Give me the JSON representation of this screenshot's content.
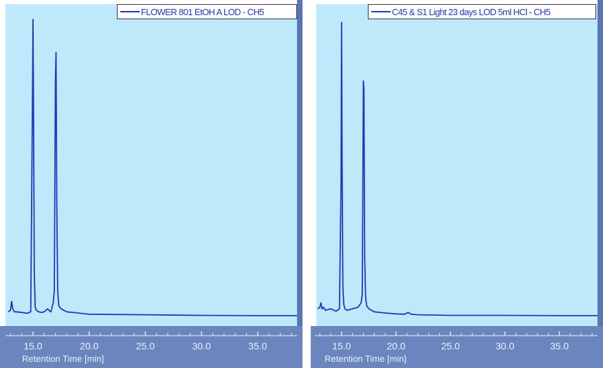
{
  "chart_data": [
    {
      "type": "line",
      "legend": "FLOWER 801 EtOH A LOD - CH5",
      "xlabel": "Retention Time [min]",
      "x_ticks": [
        "15.0",
        "20.0",
        "25.0",
        "30.0",
        "35.0"
      ],
      "xlim": [
        12.8,
        38.5
      ],
      "ylim": [
        0,
        1.0
      ],
      "series": [
        {
          "x": [
            12.8,
            13.0,
            13.1,
            13.2,
            13.35,
            13.5,
            14.0,
            14.5,
            14.8,
            14.95,
            15.0,
            15.05,
            15.12,
            15.2,
            15.3,
            15.5,
            15.8,
            16.0,
            16.3,
            16.5,
            16.6,
            16.8,
            16.9,
            17.0,
            17.05,
            17.12,
            17.2,
            17.3,
            17.5,
            18.0,
            19.0,
            20.0,
            25.0,
            30.0,
            35.0,
            38.5
          ],
          "y": [
            0.02,
            0.025,
            0.055,
            0.03,
            0.02,
            0.02,
            0.018,
            0.015,
            0.02,
            0.69,
            0.995,
            0.68,
            0.15,
            0.035,
            0.025,
            0.02,
            0.018,
            0.02,
            0.03,
            0.022,
            0.02,
            0.05,
            0.09,
            0.79,
            0.885,
            0.38,
            0.09,
            0.04,
            0.03,
            0.02,
            0.016,
            0.012,
            0.01,
            0.008,
            0.007,
            0.007
          ]
        }
      ]
    },
    {
      "type": "line",
      "legend": "C45 & S1 Light 23 days LOD 5ml HCl - CH5",
      "xlabel": "Retention Time [min]",
      "x_ticks": [
        "15.0",
        "20.0",
        "25.0",
        "30.0",
        "35.0"
      ],
      "xlim": [
        12.8,
        38.5
      ],
      "ylim": [
        0,
        1.0
      ],
      "series": [
        {
          "x": [
            12.8,
            13.0,
            13.1,
            13.2,
            13.35,
            13.5,
            14.0,
            14.5,
            14.8,
            14.95,
            15.0,
            15.05,
            15.12,
            15.2,
            15.3,
            15.5,
            16.0,
            16.5,
            16.8,
            16.9,
            17.0,
            17.05,
            17.12,
            17.2,
            17.3,
            17.5,
            18.0,
            19.0,
            20.0,
            20.8,
            21.1,
            21.4,
            22.0,
            25.0,
            30.0,
            35.0,
            38.5
          ],
          "y": [
            0.03,
            0.035,
            0.05,
            0.03,
            0.035,
            0.025,
            0.03,
            0.022,
            0.03,
            0.44,
            0.985,
            0.5,
            0.1,
            0.045,
            0.03,
            0.025,
            0.03,
            0.035,
            0.05,
            0.08,
            0.79,
            0.765,
            0.2,
            0.07,
            0.04,
            0.03,
            0.02,
            0.016,
            0.013,
            0.012,
            0.018,
            0.012,
            0.01,
            0.008,
            0.008,
            0.007,
            0.007
          ]
        }
      ]
    }
  ],
  "panels": [
    {
      "legend": "FLOWER 801 EtOH A LOD - CH5",
      "xlabel": "Retention Time [min]"
    },
    {
      "legend": "C45 & S1 Light 23 days LOD 5ml HCl - CH5",
      "xlabel": "Retention Time [min]"
    }
  ],
  "colors": {
    "trace": "#1f36c4",
    "plot_background": "#bde9fb",
    "axis_strip": "#6b86bf",
    "axis_text": "#eaf3ff"
  }
}
